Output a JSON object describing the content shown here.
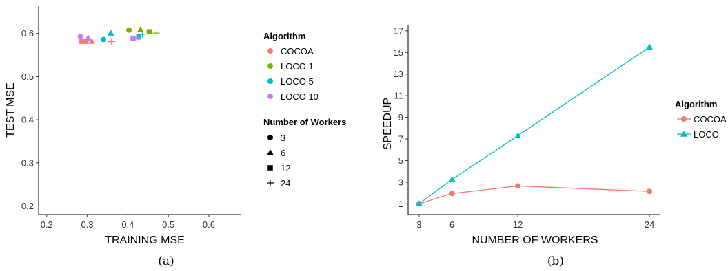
{
  "chart_data": [
    {
      "type": "scatter",
      "caption": "(a)",
      "xlabel": "TRAINING MSE",
      "ylabel": "TEST MSE",
      "xlim": [
        0.18,
        0.68
      ],
      "ylim": [
        0.18,
        0.665
      ],
      "xticks": [
        0.2,
        0.3,
        0.4,
        0.5,
        0.6
      ],
      "yticks": [
        0.2,
        0.3,
        0.4,
        0.5,
        0.6
      ],
      "grid": false,
      "legend_placement": "right",
      "legend_color_title": "Algorithm",
      "legend_shape_title": "Number of Workers",
      "algorithms": [
        {
          "name": "COCOA",
          "color": "#F8766D"
        },
        {
          "name": "LOCO 1",
          "color": "#7CAE00"
        },
        {
          "name": "LOCO 5",
          "color": "#00BFC4"
        },
        {
          "name": "LOCO 10",
          "color": "#C77CFF"
        }
      ],
      "workers": [
        {
          "name": "3",
          "shape": "circle"
        },
        {
          "name": "6",
          "shape": "triangle"
        },
        {
          "name": "12",
          "shape": "square"
        },
        {
          "name": "24",
          "shape": "plus"
        }
      ],
      "points": [
        {
          "algorithm": "COCOA",
          "workers": "3",
          "x": 0.297,
          "y": 0.582
        },
        {
          "algorithm": "COCOA",
          "workers": "6",
          "x": 0.311,
          "y": 0.582
        },
        {
          "algorithm": "COCOA",
          "workers": "12",
          "x": 0.287,
          "y": 0.582
        },
        {
          "algorithm": "COCOA",
          "workers": "24",
          "x": 0.36,
          "y": 0.581
        },
        {
          "algorithm": "LOCO 1",
          "workers": "3",
          "x": 0.403,
          "y": 0.608
        },
        {
          "algorithm": "LOCO 1",
          "workers": "6",
          "x": 0.431,
          "y": 0.609
        },
        {
          "algorithm": "LOCO 1",
          "workers": "12",
          "x": 0.453,
          "y": 0.604
        },
        {
          "algorithm": "LOCO 1",
          "workers": "24",
          "x": 0.47,
          "y": 0.601
        },
        {
          "algorithm": "LOCO 5",
          "workers": "3",
          "x": 0.34,
          "y": 0.586
        },
        {
          "algorithm": "LOCO 5",
          "workers": "6",
          "x": 0.358,
          "y": 0.601
        },
        {
          "algorithm": "LOCO 5",
          "workers": "12",
          "x": 0.427,
          "y": 0.592
        },
        {
          "algorithm": "LOCO 5",
          "workers": "24",
          "x": 0.436,
          "y": 0.598
        },
        {
          "algorithm": "LOCO 10",
          "workers": "3",
          "x": 0.283,
          "y": 0.593
        },
        {
          "algorithm": "LOCO 10",
          "workers": "6",
          "x": 0.302,
          "y": 0.59
        },
        {
          "algorithm": "LOCO 10",
          "workers": "12",
          "x": 0.413,
          "y": 0.589
        },
        {
          "algorithm": "LOCO 10",
          "workers": "24",
          "x": 0.422,
          "y": 0.59
        }
      ]
    },
    {
      "type": "line",
      "caption": "(b)",
      "xlabel": "NUMBER OF WORKERS",
      "ylabel": "SPEEDUP",
      "x": [
        3,
        6,
        12,
        24
      ],
      "xlim": [
        2,
        25
      ],
      "ylim": [
        0,
        17.5
      ],
      "yticks": [
        1,
        3,
        5,
        7,
        9,
        11,
        13,
        15,
        17
      ],
      "grid": false,
      "legend_placement": "right",
      "legend_title": "Algorithm",
      "series": [
        {
          "name": "COCOA",
          "color": "#F8766D",
          "shape": "circle",
          "values": [
            1,
            1.95,
            2.65,
            2.15
          ]
        },
        {
          "name": "LOCO",
          "color": "#00BFC4",
          "shape": "triangle",
          "values": [
            1,
            3.25,
            7.3,
            15.5
          ]
        }
      ]
    }
  ]
}
